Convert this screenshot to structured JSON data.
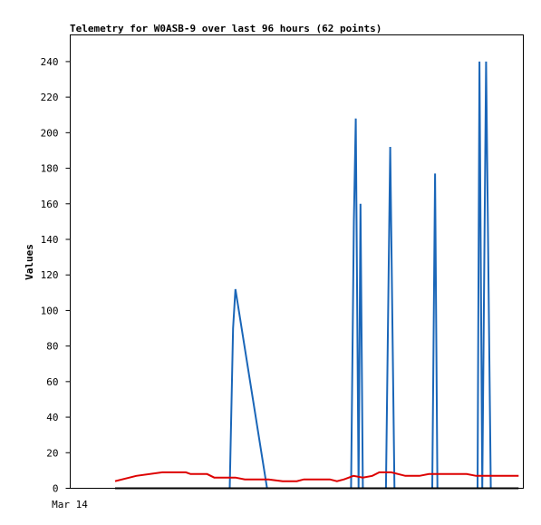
{
  "chart_data": {
    "type": "line",
    "title": "Telemetry for W0ASB-9 over last 96 hours (62 points)",
    "xlabel": "",
    "ylabel": "Values",
    "ylim": [
      0,
      255
    ],
    "yticks": [
      0,
      20,
      40,
      60,
      80,
      100,
      120,
      140,
      160,
      180,
      200,
      220,
      240
    ],
    "xtick_label": "Mar 14",
    "grid": false,
    "legend": "none",
    "x_unit": "hours",
    "xlim": [
      0,
      96
    ],
    "series": [
      {
        "color": "#1a66b8",
        "points": [
          [
            33.8,
            0
          ],
          [
            34.5,
            90
          ],
          [
            35.0,
            112
          ],
          [
            41.7,
            0
          ],
          [
            59.5,
            0
          ],
          [
            60.1,
            150
          ],
          [
            60.5,
            208
          ],
          [
            61.1,
            0
          ],
          [
            61.5,
            160
          ],
          [
            62.0,
            0
          ],
          [
            66.9,
            0
          ],
          [
            67.8,
            192
          ],
          [
            68.7,
            0
          ],
          [
            76.7,
            0
          ],
          [
            77.3,
            177
          ],
          [
            77.8,
            0
          ],
          [
            86.3,
            0
          ],
          [
            86.7,
            240
          ],
          [
            87.3,
            0
          ],
          [
            88.1,
            240
          ],
          [
            89.1,
            0
          ]
        ]
      },
      {
        "color": "#dd0000",
        "points": [
          [
            9.5,
            4
          ],
          [
            14,
            7
          ],
          [
            19.5,
            9
          ],
          [
            24.5,
            9
          ],
          [
            25.5,
            8
          ],
          [
            29,
            8
          ],
          [
            30.5,
            6
          ],
          [
            35,
            6
          ],
          [
            37,
            5
          ],
          [
            42,
            5
          ],
          [
            45,
            4
          ],
          [
            48,
            4
          ],
          [
            49.5,
            5
          ],
          [
            55,
            5
          ],
          [
            56.5,
            4
          ],
          [
            58,
            5
          ],
          [
            60,
            7
          ],
          [
            62,
            6
          ],
          [
            64,
            7
          ],
          [
            65.5,
            9
          ],
          [
            68,
            9
          ],
          [
            71,
            7
          ],
          [
            74,
            7
          ],
          [
            76,
            8
          ],
          [
            80,
            8
          ],
          [
            84,
            8
          ],
          [
            86,
            7
          ],
          [
            90,
            7
          ],
          [
            95,
            7
          ]
        ]
      },
      {
        "color": "#000000",
        "points": [
          [
            9.5,
            0
          ],
          [
            95,
            0
          ]
        ]
      }
    ]
  }
}
